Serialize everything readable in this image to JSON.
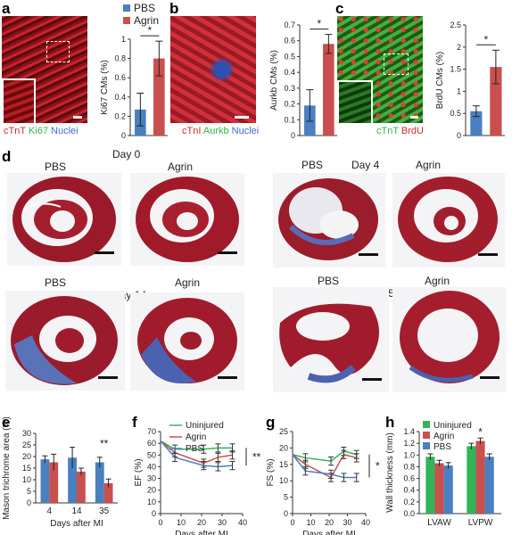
{
  "panel_labels": {
    "a": "a",
    "b": "b",
    "c": "c",
    "d": "d",
    "e": "e",
    "f": "f",
    "g": "g",
    "h": "h"
  },
  "legend_top": {
    "pbs": "PBS",
    "agrin": "Agrin"
  },
  "stains": {
    "a": [
      "cTnT",
      "Ki67",
      "Nuclei"
    ],
    "b": [
      "cTnI",
      "Aurkb",
      "Nuclei"
    ],
    "c": [
      "cTnT",
      "BrdU"
    ]
  },
  "section_d": {
    "day0": "Day 0",
    "day4": "Day 4",
    "day14": "Day 14",
    "day35": "Day 35",
    "pbs": "PBS",
    "agrin": "Agrin"
  },
  "colors": {
    "pbs": "#4a7fc1",
    "agrin": "#c9504e",
    "uninjured": "#33b35a",
    "ctnt": "#d0282a",
    "ki67": "#36b34a",
    "nuclei": "#3a6fd0"
  },
  "chart_data": [
    {
      "id": "a",
      "type": "bar",
      "categories": [
        "PBS",
        "Agrin"
      ],
      "values": [
        0.27,
        0.8
      ],
      "errors": [
        0.17,
        0.18
      ],
      "ylabel": "Ki67 CMs (%)",
      "ylim": [
        0,
        1.0
      ],
      "yticks": [
        0,
        0.2,
        0.4,
        0.6,
        0.8,
        1.0
      ],
      "significance": "*"
    },
    {
      "id": "b",
      "type": "bar",
      "categories": [
        "PBS",
        "Agrin"
      ],
      "values": [
        0.19,
        0.58
      ],
      "errors": [
        0.1,
        0.06
      ],
      "ylabel": "Aurkb CMs (%)",
      "ylim": [
        0,
        0.7
      ],
      "yticks": [
        0,
        0.1,
        0.2,
        0.3,
        0.4,
        0.5,
        0.6,
        0.7
      ],
      "significance": "*"
    },
    {
      "id": "c",
      "type": "bar",
      "categories": [
        "PBS",
        "Agrin"
      ],
      "values": [
        0.55,
        1.55
      ],
      "errors": [
        0.12,
        0.38
      ],
      "ylabel": "BrdU CMs (%)",
      "ylim": [
        0,
        2.5
      ],
      "yticks": [
        0,
        0.5,
        1.0,
        1.5,
        2.0,
        2.5
      ],
      "significance": "*"
    },
    {
      "id": "e",
      "type": "bar",
      "xlabel": "Days after MI",
      "ylabel": "Mason trichrome area (%)",
      "categories": [
        "4",
        "14",
        "35"
      ],
      "series": [
        {
          "name": "PBS",
          "values": [
            18.8,
            19.5,
            17.5
          ],
          "errors": [
            1.5,
            4.5,
            2.2
          ]
        },
        {
          "name": "Agrin",
          "values": [
            17.5,
            13.5,
            8.5
          ],
          "errors": [
            3.5,
            1.5,
            1.8
          ]
        }
      ],
      "ylim": [
        0,
        30
      ],
      "yticks": [
        0,
        5,
        10,
        15,
        20,
        25,
        30
      ],
      "significance": "**"
    },
    {
      "id": "f",
      "type": "line",
      "xlabel": "Days after MI",
      "ylabel": "EF (%)",
      "x": [
        0,
        7,
        21,
        28,
        35
      ],
      "series": [
        {
          "name": "Uninjured",
          "values": [
            62,
            55,
            55,
            56,
            56
          ]
        },
        {
          "name": "Agrin",
          "values": [
            62,
            52,
            43,
            48,
            50
          ]
        },
        {
          "name": "PBS",
          "values": [
            62,
            48,
            41,
            40,
            41
          ]
        }
      ],
      "xlim": [
        0,
        40
      ],
      "ylim": [
        0,
        70
      ],
      "xticks": [
        0,
        10,
        20,
        30,
        40
      ],
      "yticks": [
        0,
        10,
        20,
        30,
        40,
        50,
        60,
        70
      ],
      "significance": "**"
    },
    {
      "id": "g",
      "type": "line",
      "xlabel": "Days after MI",
      "ylabel": "FS (%)",
      "x": [
        0,
        7,
        21,
        28,
        35
      ],
      "series": [
        {
          "name": "Uninjured",
          "values": [
            18,
            17,
            16,
            19,
            18
          ]
        },
        {
          "name": "Agrin",
          "values": [
            18,
            15,
            11,
            18,
            17
          ]
        },
        {
          "name": "PBS",
          "values": [
            18,
            13,
            12,
            11,
            11
          ]
        }
      ],
      "xlim": [
        0,
        40
      ],
      "ylim": [
        0,
        25
      ],
      "xticks": [
        0,
        10,
        20,
        30,
        40
      ],
      "yticks": [
        0,
        5,
        10,
        15,
        20,
        25
      ],
      "significance": "*"
    },
    {
      "id": "h",
      "type": "bar",
      "xlabel": "",
      "ylabel": "Wall thickness (mm)",
      "categories": [
        "LVAW",
        "LVPW"
      ],
      "series": [
        {
          "name": "Uninjured",
          "values": [
            0.97,
            1.15
          ]
        },
        {
          "name": "Agrin",
          "values": [
            0.86,
            1.24
          ]
        },
        {
          "name": "PBS",
          "values": [
            0.82,
            0.97
          ]
        }
      ],
      "ylim": [
        0,
        1.4
      ],
      "yticks": [
        0,
        0.2,
        0.4,
        0.6,
        0.8,
        1.0,
        1.2,
        1.4
      ],
      "significance": "*"
    }
  ]
}
